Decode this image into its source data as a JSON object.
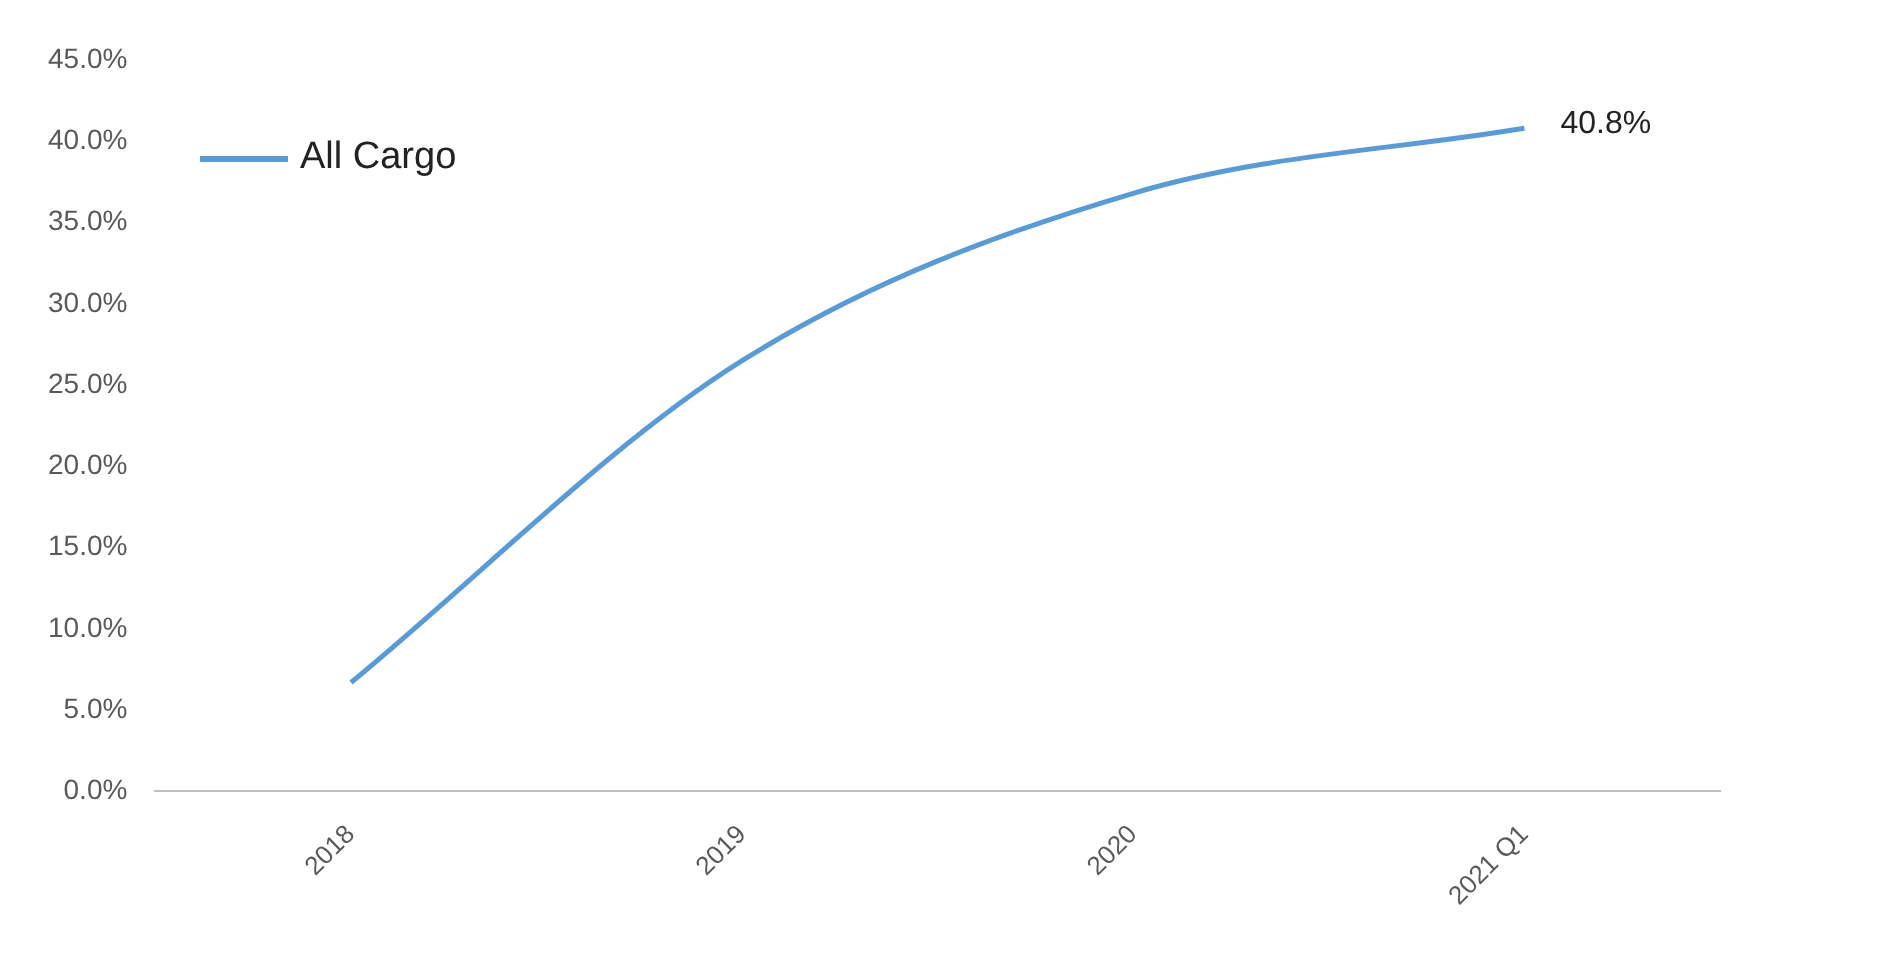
{
  "chart_data": {
    "type": "line",
    "categories": [
      "2018",
      "2019",
      "2020",
      "2021 Q1"
    ],
    "series": [
      {
        "name": "All Cargo",
        "color": "#5b9bd5",
        "values": [
          6.7,
          26.5,
          36.8,
          40.8
        ],
        "value_labels": [
          null,
          null,
          null,
          "40.8%"
        ]
      }
    ],
    "ylim": [
      0,
      45
    ],
    "yticks": [
      {
        "value": 0,
        "label": "0.0%"
      },
      {
        "value": 5,
        "label": "5.0%"
      },
      {
        "value": 10,
        "label": "10.0%"
      },
      {
        "value": 15,
        "label": "15.0%"
      },
      {
        "value": 20,
        "label": "20.0%"
      },
      {
        "value": 25,
        "label": "25.0%"
      },
      {
        "value": 30,
        "label": "30.0%"
      },
      {
        "value": 35,
        "label": "35.0%"
      },
      {
        "value": 40,
        "label": "40.0%"
      },
      {
        "value": 45,
        "label": "45.0%"
      }
    ],
    "grid": false,
    "legend": "top left",
    "marker": "none",
    "line_style": "solid"
  }
}
